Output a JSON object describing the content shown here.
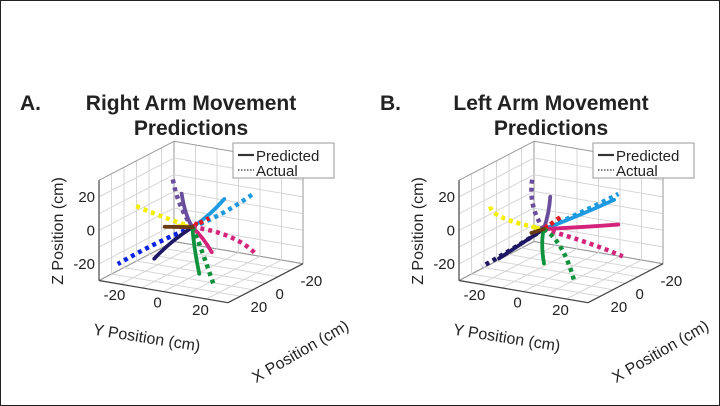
{
  "chart_data": [
    {
      "type": "line3d",
      "panel_label": "A.",
      "title_lines": [
        "Right Arm Movement",
        "Predictions"
      ],
      "xlabel": "X Position (cm)",
      "ylabel": "Y Position (cm)",
      "zlabel": "Z Position (cm)",
      "xlim": [
        -30,
        30
      ],
      "ylim": [
        -30,
        30
      ],
      "zlim": [
        -30,
        30
      ],
      "xticks": [
        "-20",
        "0",
        "20"
      ],
      "yticks": [
        "-20",
        "0",
        "20"
      ],
      "zticks": [
        "-20",
        "0",
        "20"
      ],
      "grid": true,
      "legend": {
        "placement": "top-right",
        "entries": [
          {
            "label": "Predicted",
            "style": "solid"
          },
          {
            "label": "Actual",
            "style": "dotted"
          }
        ]
      },
      "series": [
        {
          "color": "#f2ef00",
          "style": "dotted",
          "points": [
            [
              0,
              -4,
              -4
            ],
            [
              3,
              -17,
              1
            ],
            [
              5,
              -29,
              6
            ]
          ]
        },
        {
          "color": "#f2ef00",
          "style": "solid",
          "points": [
            [
              0,
              -4,
              -4
            ],
            [
              0,
              -8,
              -4
            ],
            [
              0,
              -11,
              -5
            ]
          ]
        },
        {
          "color": "#6a4d9c",
          "style": "dotted",
          "points": [
            [
              0,
              -4,
              -4
            ],
            [
              -4,
              -12,
              6
            ],
            [
              -10,
              -19,
              18
            ]
          ]
        },
        {
          "color": "#6a4d9c",
          "style": "solid",
          "points": [
            [
              0,
              -4,
              -4
            ],
            [
              0,
              -7,
              4
            ],
            [
              0,
              -9,
              15
            ]
          ]
        },
        {
          "color": "#1d9ae0",
          "style": "dotted",
          "points": [
            [
              0,
              -4,
              -4
            ],
            [
              -8,
              6,
              4
            ],
            [
              -15,
              16,
              15
            ]
          ]
        },
        {
          "color": "#1d9ae0",
          "style": "solid",
          "points": [
            [
              0,
              -4,
              -4
            ],
            [
              -5,
              1,
              3
            ],
            [
              -10,
              5,
              11
            ]
          ]
        },
        {
          "color": "#e3161f",
          "style": "dotted",
          "points": [
            [
              0,
              -4,
              -4
            ],
            [
              -5,
              -2,
              -2
            ],
            [
              -10,
              -2,
              -2
            ]
          ]
        },
        {
          "color": "#e3161f",
          "style": "solid",
          "points": [
            [
              0,
              -4,
              -4
            ],
            [
              -2,
              -4,
              -4
            ],
            [
              -3,
              -4,
              -3
            ]
          ]
        },
        {
          "color": "#d4237b",
          "style": "dotted",
          "points": [
            [
              0,
              -4,
              -4
            ],
            [
              -6,
              10,
              -9
            ],
            [
              -10,
              20,
              -19
            ]
          ]
        },
        {
          "color": "#d4237b",
          "style": "solid",
          "points": [
            [
              0,
              -4,
              -4
            ],
            [
              0,
              1,
              -10
            ],
            [
              0,
              5,
              -17
            ]
          ]
        },
        {
          "color": "#0b22e6",
          "style": "dotted",
          "points": [
            [
              0,
              -4,
              -4
            ],
            [
              8,
              -17,
              -14
            ],
            [
              15,
              -30,
              -26
            ]
          ]
        },
        {
          "color": "#1e1763",
          "style": "solid",
          "points": [
            [
              0,
              -4,
              -4
            ],
            [
              8,
              -9,
              -11
            ],
            [
              15,
              -13,
              -19
            ]
          ]
        },
        {
          "color": "#10933c",
          "style": "solid",
          "points": [
            [
              0,
              -4,
              -4
            ],
            [
              5,
              0,
              -14
            ],
            [
              10,
              5,
              -26
            ]
          ]
        },
        {
          "color": "#10933c",
          "style": "dotted",
          "points": [
            [
              0,
              -4,
              -4
            ],
            [
              8,
              5,
              -13
            ],
            [
              15,
              15,
              -30
            ]
          ]
        },
        {
          "color": "#6b3b12",
          "style": "solid",
          "points": [
            [
              0,
              -4,
              -4
            ],
            [
              3,
              -10,
              -4
            ],
            [
              5,
              -14,
              -4
            ]
          ]
        }
      ]
    },
    {
      "type": "line3d",
      "panel_label": "B.",
      "title_lines": [
        "Left Arm Movement",
        "Predictions"
      ],
      "xlabel": "X Position (cm)",
      "ylabel": "Y Position (cm)",
      "zlabel": "Z Position (cm)",
      "xlim": [
        -30,
        30
      ],
      "ylim": [
        -30,
        30
      ],
      "zlim": [
        -30,
        30
      ],
      "xticks": [
        "-20",
        "0",
        "20"
      ],
      "yticks": [
        "-20",
        "0",
        "20"
      ],
      "zticks": [
        "-20",
        "0",
        "20"
      ],
      "grid": true,
      "legend": {
        "placement": "top-right",
        "entries": [
          {
            "label": "Predicted",
            "style": "solid"
          },
          {
            "label": "Actual",
            "style": "dotted"
          }
        ]
      },
      "series": [
        {
          "color": "#f2ef00",
          "style": "dotted",
          "points": [
            [
              0,
              -8,
              -6
            ],
            [
              3,
              -25,
              -2
            ],
            [
              5,
              -30,
              5
            ]
          ]
        },
        {
          "color": "#f2ef00",
          "style": "solid",
          "points": [
            [
              0,
              -8,
              -6
            ],
            [
              0,
              -11,
              -6
            ],
            [
              0,
              -13,
              -6
            ]
          ]
        },
        {
          "color": "#6a4d9c",
          "style": "dotted",
          "points": [
            [
              0,
              -8,
              -6
            ],
            [
              -5,
              -16,
              5
            ],
            [
              -10,
              -19,
              19
            ]
          ]
        },
        {
          "color": "#6a4d9c",
          "style": "solid",
          "points": [
            [
              0,
              -8,
              -6
            ],
            [
              0,
              -6,
              4
            ],
            [
              0,
              -5,
              14
            ]
          ]
        },
        {
          "color": "#1d9ae0",
          "style": "dotted",
          "points": [
            [
              0,
              -8,
              -6
            ],
            [
              -8,
              5,
              4
            ],
            [
              -15,
              18,
              15
            ]
          ]
        },
        {
          "color": "#1d9ae0",
          "style": "solid",
          "points": [
            [
              0,
              -8,
              -6
            ],
            [
              -8,
              4,
              2
            ],
            [
              -15,
              16,
              11
            ]
          ]
        },
        {
          "color": "#d4237b",
          "style": "solid",
          "points": [
            [
              0,
              -8,
              -6
            ],
            [
              -10,
              4,
              -6
            ],
            [
              -20,
              15,
              -6
            ]
          ]
        },
        {
          "color": "#d4237b",
          "style": "dotted",
          "points": [
            [
              0,
              -8,
              -6
            ],
            [
              -10,
              7,
              -15
            ],
            [
              -15,
              20,
              -22
            ]
          ]
        },
        {
          "color": "#e3161f",
          "style": "dotted",
          "points": [
            [
              0,
              -8,
              -6
            ],
            [
              -5,
              -6,
              -3
            ],
            [
              -10,
              -5,
              -1
            ]
          ]
        },
        {
          "color": "#e3161f",
          "style": "solid",
          "points": [
            [
              0,
              -8,
              -6
            ],
            [
              -1,
              -8,
              -6
            ],
            [
              -2,
              -8,
              -5
            ]
          ]
        },
        {
          "color": "#1e1763",
          "style": "solid",
          "points": [
            [
              0,
              -8,
              -6
            ],
            [
              5,
              -15,
              -14
            ],
            [
              10,
              -23,
              -23
            ]
          ]
        },
        {
          "color": "#1e1763",
          "style": "dotted",
          "points": [
            [
              0,
              -8,
              -6
            ],
            [
              8,
              -18,
              -17
            ],
            [
              15,
              -28,
              -27
            ]
          ]
        },
        {
          "color": "#10933c",
          "style": "solid",
          "points": [
            [
              0,
              -8,
              -6
            ],
            [
              3,
              -7,
              -14
            ],
            [
              5,
              -5,
              -24
            ]
          ]
        },
        {
          "color": "#10933c",
          "style": "dotted",
          "points": [
            [
              0,
              -8,
              -6
            ],
            [
              5,
              3,
              -13
            ],
            [
              10,
              12,
              -29
            ]
          ]
        },
        {
          "color": "#6b3b12",
          "style": "solid",
          "points": [
            [
              0,
              -8,
              -6
            ],
            [
              2,
              -10,
              -7
            ],
            [
              3,
              -12,
              -8
            ]
          ]
        }
      ]
    }
  ]
}
